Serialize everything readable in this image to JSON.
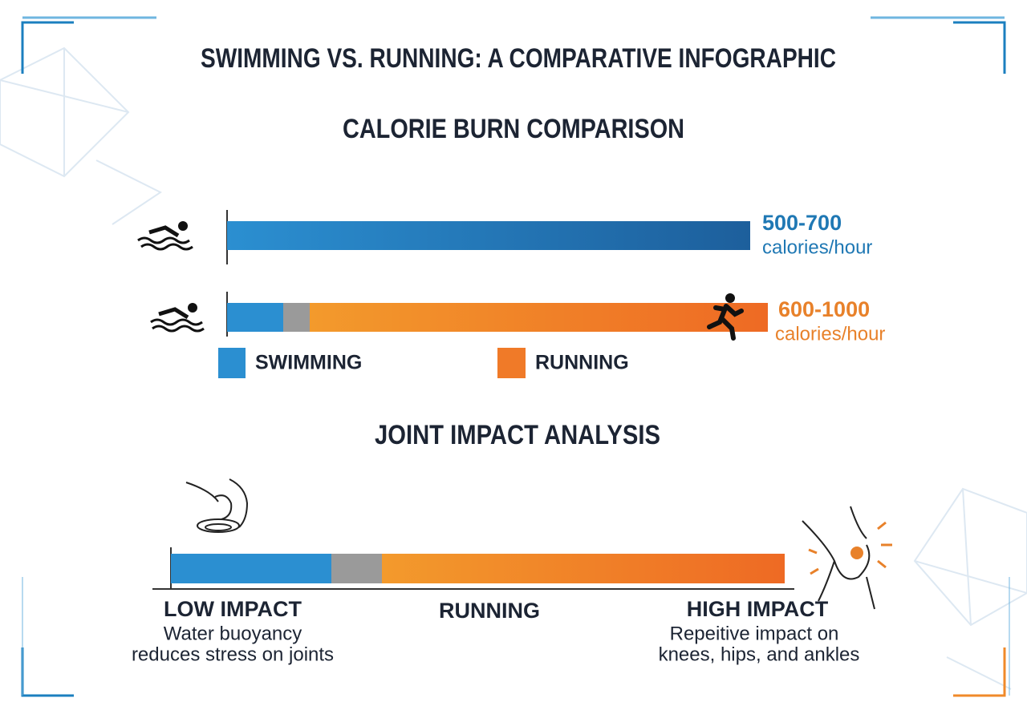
{
  "title": "SWIMMING VS. RUNNING: A COMPARATIVE INFOGRAPHIC",
  "calorie_section": {
    "heading": "CALORIE BURN COMPARISON",
    "swimming": {
      "range": "500-700",
      "unit": "calories/hour"
    },
    "running": {
      "range": "600-1000",
      "unit": "calories/hour"
    },
    "legend": [
      "SWIMMING",
      "RUNNING"
    ]
  },
  "joint_section": {
    "heading": "JOINT IMPACT ANALYSIS",
    "low": {
      "label": "LOW IMPACT",
      "description": [
        "Water buoyancy",
        "reduces stress on joints"
      ]
    },
    "middle": "RUNNING",
    "high": {
      "label": "HIGH IMPACT",
      "description": [
        "Repeitive impact on",
        "knees, hips, and ankles"
      ]
    }
  }
}
